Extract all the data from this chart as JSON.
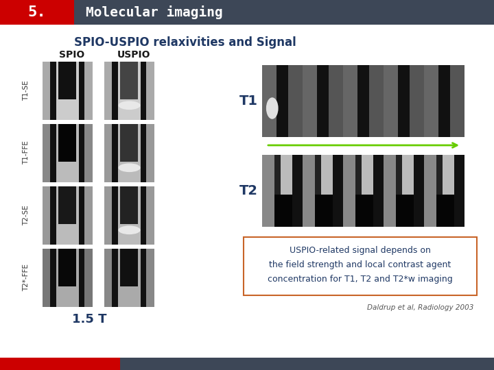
{
  "header_num": "5.",
  "header_num_bg": "#cc0000",
  "header_text": "Molecular imaging",
  "header_bg": "#3d4757",
  "header_text_color": "#ffffff",
  "title": "SPIO-USPIO relaxivities and Signal",
  "title_color": "#1f3864",
  "title_fontsize": 12,
  "left_labels": [
    "T1-SE",
    "T1-FFE",
    "T2-SE",
    "T2*-FFE"
  ],
  "col_headers": [
    "SPIO",
    "USPIO"
  ],
  "left_label_color": "#333333",
  "col_header_color": "#1a1a1a",
  "t1_label": "T1",
  "t2_label": "T2",
  "t1_t2_color": "#1f3864",
  "arrow_color": "#66cc00",
  "box_text_line1": "USPIO-related signal depends on",
  "box_text_line2": "the field strength and local contrast agent",
  "box_text_line3": "concentration for T1, T2 and T2*w imaging",
  "box_text_color": "#1f3864",
  "box_edge_color": "#c86428",
  "ref_text": "Daldrup et al, Radiology 2003",
  "ref_color": "#555555",
  "footer_left_color": "#cc0000",
  "footer_right_color": "#3d4757",
  "one_five_t": "1.5 T",
  "one_five_t_color": "#1f3864",
  "background_color": "#ffffff"
}
